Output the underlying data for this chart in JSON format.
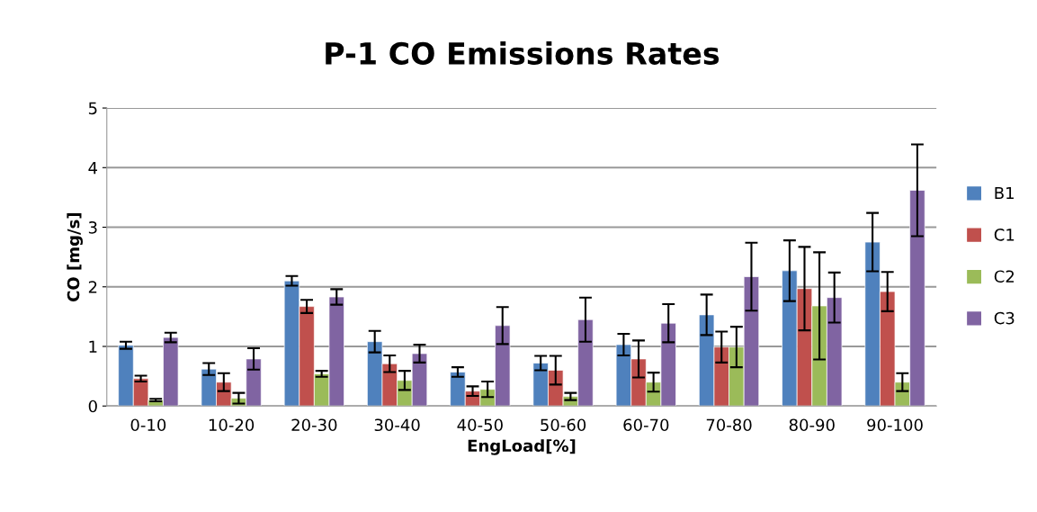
{
  "chart_data": {
    "type": "bar",
    "title": "P-1 CO Emissions Rates",
    "xlabel": "EngLoad[%]",
    "ylabel": "CO [mg/s]",
    "categories": [
      "0-10",
      "10-20",
      "20-30",
      "30-40",
      "40-50",
      "50-60",
      "60-70",
      "70-80",
      "80-90",
      "90-100"
    ],
    "series": [
      {
        "name": "B1",
        "color": "#4f81bd",
        "values": [
          1.02,
          0.62,
          2.1,
          1.08,
          0.57,
          0.72,
          1.03,
          1.53,
          2.27,
          2.75
        ],
        "errors": [
          0.06,
          0.1,
          0.08,
          0.18,
          0.08,
          0.12,
          0.18,
          0.34,
          0.51,
          0.49
        ]
      },
      {
        "name": "C1",
        "color": "#c0504d",
        "values": [
          0.46,
          0.4,
          1.67,
          0.71,
          0.25,
          0.6,
          0.79,
          0.99,
          1.97,
          1.92
        ],
        "errors": [
          0.05,
          0.15,
          0.11,
          0.14,
          0.08,
          0.24,
          0.31,
          0.26,
          0.7,
          0.33
        ]
      },
      {
        "name": "C2",
        "color": "#9bbb59",
        "values": [
          0.1,
          0.13,
          0.54,
          0.43,
          0.28,
          0.16,
          0.4,
          0.99,
          1.68,
          0.4
        ],
        "errors": [
          0.02,
          0.09,
          0.05,
          0.16,
          0.13,
          0.06,
          0.16,
          0.34,
          0.9,
          0.15
        ]
      },
      {
        "name": "C3",
        "color": "#8064a2",
        "values": [
          1.15,
          0.79,
          1.83,
          0.88,
          1.35,
          1.45,
          1.39,
          2.17,
          1.82,
          3.62
        ],
        "errors": [
          0.08,
          0.18,
          0.13,
          0.15,
          0.31,
          0.37,
          0.32,
          0.57,
          0.42,
          0.77
        ]
      }
    ],
    "ylim": [
      0,
      5
    ],
    "yticks": [
      0,
      1,
      2,
      3,
      4,
      5
    ],
    "grid": "y",
    "legend": "right"
  }
}
